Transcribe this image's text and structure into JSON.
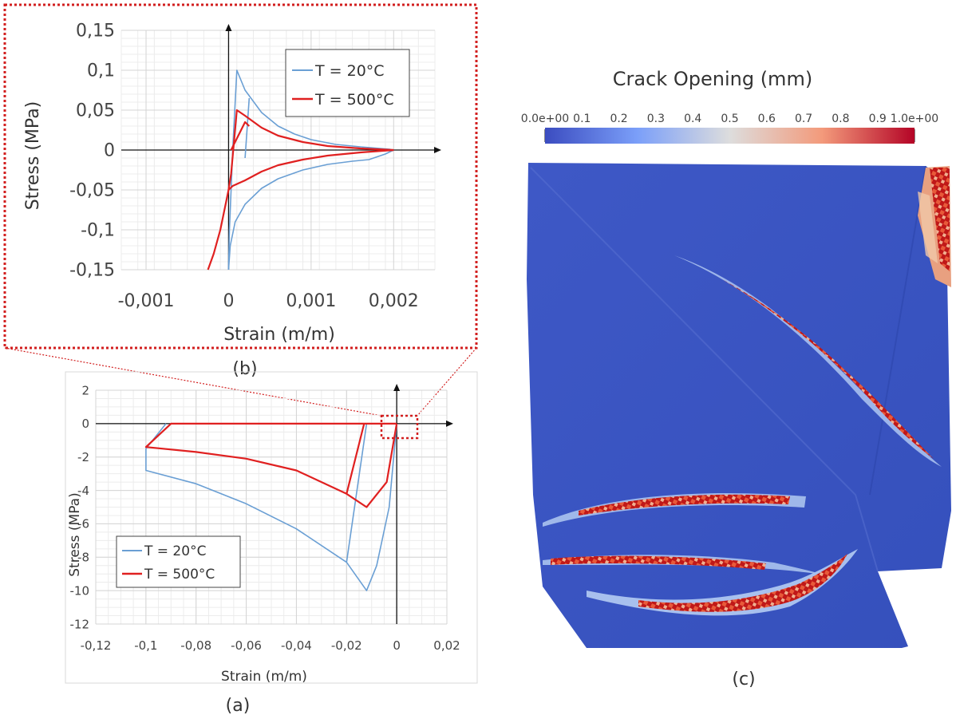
{
  "panel_b": {
    "label": "(b)",
    "chart_data": {
      "type": "line",
      "xlabel": "Strain (m/m)",
      "ylabel": "Stress (MPa)",
      "xlim": [
        -0.0013,
        0.0025
      ],
      "ylim": [
        -0.15,
        0.15
      ],
      "xticks": [
        -0.001,
        0,
        0.001,
        0.002
      ],
      "xtick_labels": [
        "-0,001",
        "0",
        "0,001",
        "0,002"
      ],
      "yticks": [
        0.15,
        0.1,
        0.05,
        0,
        -0.05,
        -0.1,
        -0.15
      ],
      "ytick_labels": [
        "0,15",
        "0,1",
        "0,05",
        "0",
        "-0,05",
        "-0,1",
        "-0,15"
      ],
      "grid": true,
      "legend_position": "top-right",
      "series": [
        {
          "name": "T = 20°C",
          "color": "#6a9fd4",
          "points": [
            [
              0,
              -0.15
            ],
            [
              1e-05,
              -0.1
            ],
            [
              3e-05,
              -0.05
            ],
            [
              5e-05,
              0
            ],
            [
              0.0001,
              0.1
            ],
            [
              0.0002,
              0.075
            ],
            [
              0.0004,
              0.047
            ],
            [
              0.0006,
              0.03
            ],
            [
              0.0008,
              0.02
            ],
            [
              0.001,
              0.013
            ],
            [
              0.0013,
              0.007
            ],
            [
              0.0016,
              0.004
            ],
            [
              0.00195,
              0.001
            ],
            [
              0.002,
              0
            ]
          ]
        },
        {
          "name": "T = 20°C",
          "color": "#6a9fd4",
          "points": [
            [
              0.002,
              0
            ],
            [
              0.0019,
              -0.005
            ],
            [
              0.0017,
              -0.012
            ],
            [
              0.0015,
              -0.014
            ],
            [
              0.0012,
              -0.018
            ],
            [
              0.0009,
              -0.025
            ],
            [
              0.0006,
              -0.036
            ],
            [
              0.0004,
              -0.048
            ],
            [
              0.0002,
              -0.068
            ],
            [
              8e-05,
              -0.09
            ],
            [
              2e-05,
              -0.12
            ],
            [
              0,
              -0.15
            ]
          ]
        },
        {
          "name": "T = 20°C",
          "color": "#6a9fd4",
          "points": [
            [
              0.00025,
              0.065
            ],
            [
              0.00022,
              0.02
            ],
            [
              0.0002,
              -0.01
            ]
          ]
        },
        {
          "name": "T = 500°C",
          "color": "#e02020",
          "points": [
            [
              0,
              -0.05
            ],
            [
              3e-05,
              -0.03
            ],
            [
              0.0001,
              0.05
            ],
            [
              0.0002,
              0.043
            ],
            [
              0.0004,
              0.028
            ],
            [
              0.0006,
              0.018
            ],
            [
              0.0009,
              0.01
            ],
            [
              0.0012,
              0.005
            ],
            [
              0.0016,
              0.002
            ],
            [
              0.002,
              0
            ]
          ]
        },
        {
          "name": "T = 500°C",
          "color": "#e02020",
          "points": [
            [
              0.002,
              0
            ],
            [
              0.0016,
              -0.003
            ],
            [
              0.0012,
              -0.007
            ],
            [
              0.0009,
              -0.012
            ],
            [
              0.0006,
              -0.019
            ],
            [
              0.0004,
              -0.027
            ],
            [
              0.0002,
              -0.038
            ],
            [
              5e-05,
              -0.045
            ],
            [
              0,
              -0.05
            ],
            [
              -4e-05,
              -0.07
            ],
            [
              -0.0001,
              -0.1
            ],
            [
              -0.00018,
              -0.13
            ],
            [
              -0.00025,
              -0.15
            ]
          ]
        },
        {
          "name": "T = 500°C",
          "color": "#e02020",
          "points": [
            [
              3e-05,
              0
            ],
            [
              0.0002,
              0.035
            ],
            [
              0.00025,
              0.03
            ]
          ]
        }
      ],
      "legend": [
        "T = 20°C",
        "T = 500°C"
      ]
    }
  },
  "panel_a": {
    "label": "(a)",
    "chart_data": {
      "type": "line",
      "xlabel": "Strain (m/m)",
      "ylabel": "Stress (MPa)",
      "xlim": [
        -0.12,
        0.02
      ],
      "ylim": [
        -12,
        2
      ],
      "xticks": [
        -0.12,
        -0.1,
        -0.08,
        -0.06,
        -0.04,
        -0.02,
        0,
        0.02
      ],
      "xtick_labels": [
        "-0,12",
        "-0,1",
        "-0,08",
        "-0,06",
        "-0,04",
        "-0,02",
        "0",
        "0,02"
      ],
      "yticks": [
        2,
        0,
        -2,
        -4,
        -6,
        -8,
        -10,
        -12
      ],
      "ytick_labels": [
        "2",
        "0",
        "-2",
        "-4",
        "-6",
        "-8",
        "-10",
        "-12"
      ],
      "grid": true,
      "legend_position": "bottom-left",
      "series": [
        {
          "name": "T = 20°C",
          "color": "#6a9fd4",
          "points": [
            [
              0,
              0
            ],
            [
              -0.003,
              -5
            ],
            [
              -0.008,
              -8.5
            ],
            [
              -0.012,
              -10
            ],
            [
              -0.02,
              -8.3
            ],
            [
              -0.012,
              0
            ],
            [
              -0.02,
              -8.3
            ],
            [
              -0.04,
              -6.3
            ],
            [
              -0.06,
              -4.8
            ],
            [
              -0.08,
              -3.6
            ],
            [
              -0.1,
              -2.8
            ],
            [
              -0.1,
              -1.5
            ],
            [
              -0.092,
              0
            ]
          ]
        },
        {
          "name": "T = 500°C",
          "color": "#e02020",
          "points": [
            [
              0,
              0
            ],
            [
              -0.004,
              -3.5
            ],
            [
              -0.012,
              -5
            ],
            [
              -0.02,
              -4.2
            ],
            [
              -0.013,
              0
            ],
            [
              -0.02,
              -4.2
            ],
            [
              -0.04,
              -2.8
            ],
            [
              -0.06,
              -2.1
            ],
            [
              -0.08,
              -1.7
            ],
            [
              -0.1,
              -1.4
            ],
            [
              -0.09,
              0
            ],
            [
              0,
              0
            ]
          ]
        }
      ],
      "legend": [
        "T = 20°C",
        "T = 500°C"
      ]
    }
  },
  "panel_c": {
    "label": "(c)",
    "colorbar_title": "Crack Opening (mm)",
    "colorbar_ticks": [
      "0.0e+00",
      "0.1",
      "0.2",
      "0.3",
      "0.4",
      "0.5",
      "0.6",
      "0.7",
      "0.8",
      "0.9",
      "1.0e+00"
    ],
    "colors": {
      "low": "#3b4cc0",
      "mid": "#dddddd",
      "high": "#b40426",
      "body": "#3a55c0"
    }
  }
}
